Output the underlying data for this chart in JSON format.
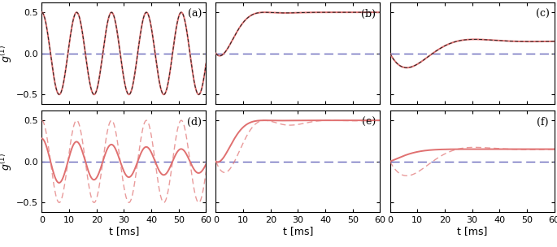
{
  "xlim": [
    0,
    60
  ],
  "yticks": [
    -0.5,
    0,
    0.5
  ],
  "xticks": [
    0,
    10,
    20,
    30,
    40,
    50,
    60
  ],
  "xlabel": "t [ms]",
  "panels": [
    "(a)",
    "(b)",
    "(c)",
    "(d)",
    "(e)",
    "(f)"
  ],
  "background_color": "#ffffff",
  "red_color": "#e07070",
  "black_color": "#222222",
  "blue_color": "#6666bb",
  "panel_a": {
    "amplitude": 0.5,
    "freq": 0.0785
  },
  "panel_b": {
    "amplitude": 0.5,
    "decay": 0.22,
    "freq": 0.068,
    "asymptote": 0.5
  },
  "panel_c": {
    "amplitude": -0.5,
    "decay": 0.1,
    "freq": 0.033,
    "asymptote": 0.15
  },
  "panel_d": {
    "freq": 0.0785,
    "amplitude_solid": 0.28,
    "decay_solid": 0.012,
    "amplitude_dashed": 0.5,
    "decay_dashed": 0.0
  },
  "panel_e": {
    "freq": 0.068,
    "asymptote_solid": 0.5,
    "decay_solid": 0.22,
    "asymptote_dashed": 0.5,
    "decay_dashed": 0.1
  },
  "panel_f": {
    "freq": 0.033,
    "asymptote_solid": 0.15,
    "decay_solid": 0.22,
    "asymptote_dashed": 0.15,
    "decay_dashed": 0.09
  }
}
